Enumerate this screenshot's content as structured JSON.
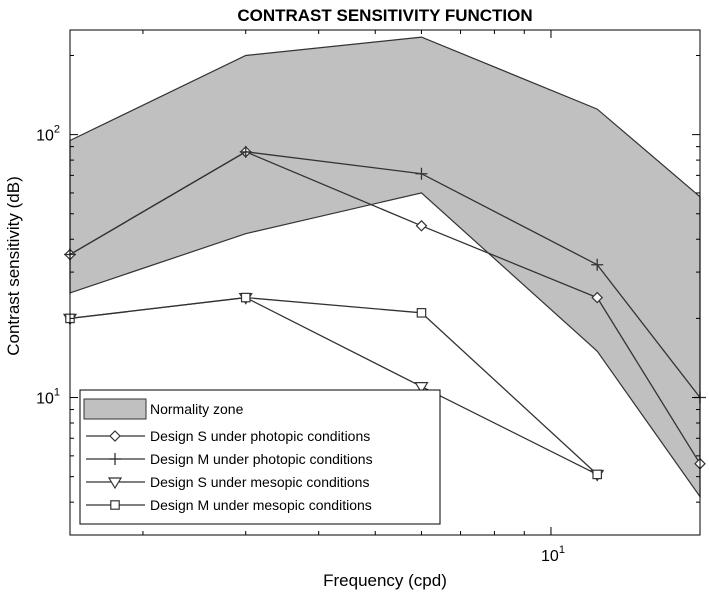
{
  "chart_data": {
    "type": "line",
    "title": "CONTRAST SENSITIVITY FUNCTION",
    "xlabel": "Frequency (cpd)",
    "ylabel": "Contrast sensitivity (dB)",
    "x_scale": "log",
    "y_scale": "log",
    "xlim": [
      1.5,
      18
    ],
    "ylim": [
      3.0,
      250
    ],
    "grid": false,
    "legend_position": "bottom-left",
    "x_ticks": [
      {
        "value": 10,
        "base": "10",
        "exp": "1"
      }
    ],
    "y_ticks": [
      {
        "value": 10,
        "base": "10",
        "exp": "1"
      },
      {
        "value": 100,
        "base": "10",
        "exp": "2"
      }
    ],
    "band": {
      "name": "Normality zone",
      "x": [
        1.5,
        3,
        6,
        12,
        18
      ],
      "upper": [
        95,
        200,
        235,
        125,
        58
      ],
      "lower": [
        25,
        42,
        60,
        15,
        4.2
      ],
      "fill": "#c0c0c0",
      "stroke": "#333333"
    },
    "series": [
      {
        "name": "Design S under photopic conditions",
        "marker": "diamond",
        "x": [
          1.5,
          3,
          6,
          12,
          18
        ],
        "values": [
          35,
          86,
          45,
          24,
          5.6
        ]
      },
      {
        "name": "Design M under photopic conditions",
        "marker": "plus",
        "x": [
          1.5,
          3,
          6,
          12,
          18
        ],
        "values": [
          35,
          86,
          71,
          32,
          10
        ]
      },
      {
        "name": "Design S under mesopic conditions",
        "marker": "triangle-down",
        "x": [
          1.5,
          3,
          6,
          12
        ],
        "values": [
          20,
          24,
          11,
          5.1
        ]
      },
      {
        "name": "Design M under mesopic conditions",
        "marker": "square",
        "x": [
          1.5,
          3,
          6,
          12
        ],
        "values": [
          20,
          24,
          21,
          5.1
        ]
      }
    ]
  }
}
